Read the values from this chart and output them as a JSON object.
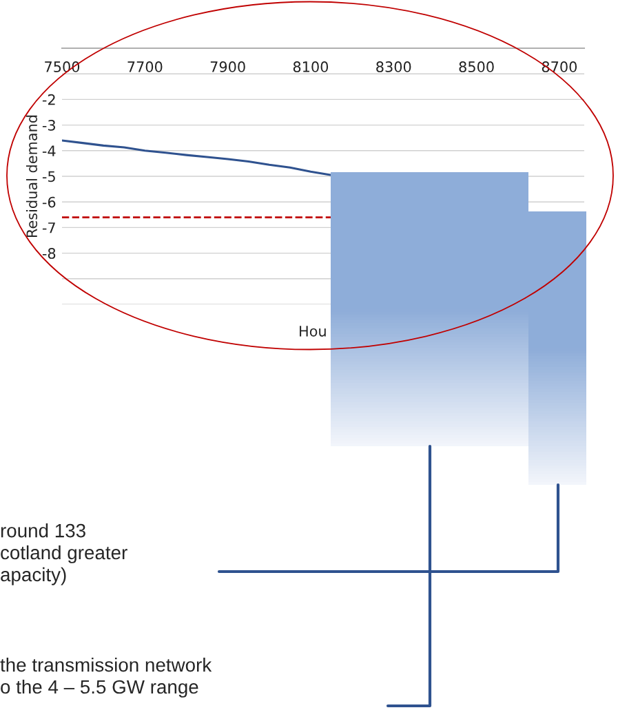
{
  "chart_data": {
    "type": "line",
    "xlabel": "Hou",
    "ylabel": "Residual demand",
    "x": [
      7500,
      7550,
      7600,
      7650,
      7700,
      7750,
      7800,
      7850,
      7900,
      7950,
      8000,
      8050,
      8100,
      8150
    ],
    "series": [
      {
        "color": "#2f528f",
        "values": [
          -3.6,
          -3.7,
          -3.8,
          -3.87,
          -4.0,
          -4.08,
          -4.17,
          -4.25,
          -4.33,
          -4.42,
          -4.55,
          -4.66,
          -4.82,
          -4.95
        ]
      }
    ],
    "xlim": [
      7500,
      8760
    ],
    "xticks": [
      7500,
      7700,
      7900,
      8100,
      8300,
      8500,
      8700
    ],
    "ylim": [
      -10,
      0
    ],
    "yticks": [
      {
        "value": -10,
        "label": null
      },
      {
        "value": -9,
        "label": null
      },
      {
        "value": -8,
        "label": "-8"
      },
      -7,
      -6,
      -5,
      -4,
      -3,
      -2,
      {
        "value": -1,
        "label": null
      },
      {
        "value": 0,
        "label": null
      }
    ],
    "ref_lines": [
      {
        "axis": "y",
        "value": -6.6,
        "color": "#c00000",
        "line_style": "dashed"
      }
    ],
    "grid": "y",
    "marker": "none",
    "line_style": "solid",
    "annotations": [
      "round 133\ncotland greater\napacity)",
      "the transmission network\no the 4 – 5.5 GW range"
    ]
  }
}
